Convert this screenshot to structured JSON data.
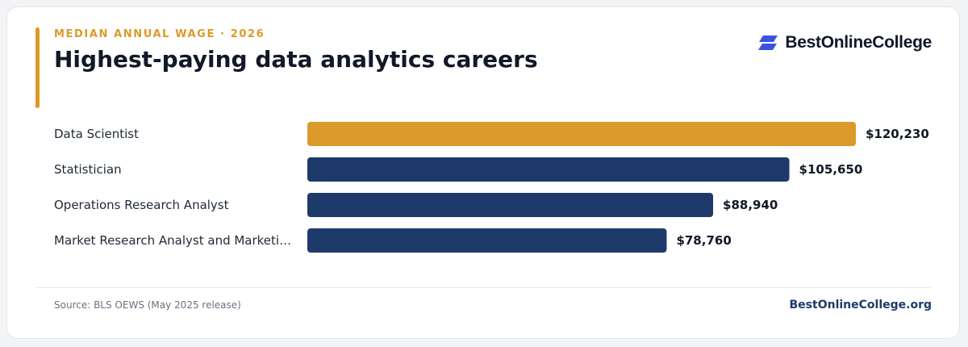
{
  "header": {
    "eyebrow": "MEDIAN ANNUAL WAGE · 2026",
    "title": "Highest-paying data analytics careers"
  },
  "brand": {
    "name": "BestOnlineCollege",
    "icon": "logo-parallelogram-icon"
  },
  "footer": {
    "source": "Source: BLS OEWS (May 2025 release)",
    "site": "BestOnlineCollege.org"
  },
  "colors": {
    "accent": "#db9a2a",
    "navy": "#1e3a6b",
    "logo_blue": "#3b52e0"
  },
  "chart_data": {
    "type": "bar",
    "orientation": "horizontal",
    "categories": [
      "Data Scientist",
      "Statistician",
      "Operations Research Analyst",
      "Market Research Analyst and Marketi…"
    ],
    "values": [
      120230,
      105650,
      88940,
      78760
    ],
    "value_labels": [
      "$120,230",
      "$105,650",
      "$88,940",
      "$78,760"
    ],
    "highlight_index": 0,
    "xlim": [
      0,
      120230
    ],
    "grid": false,
    "legend": "none"
  }
}
